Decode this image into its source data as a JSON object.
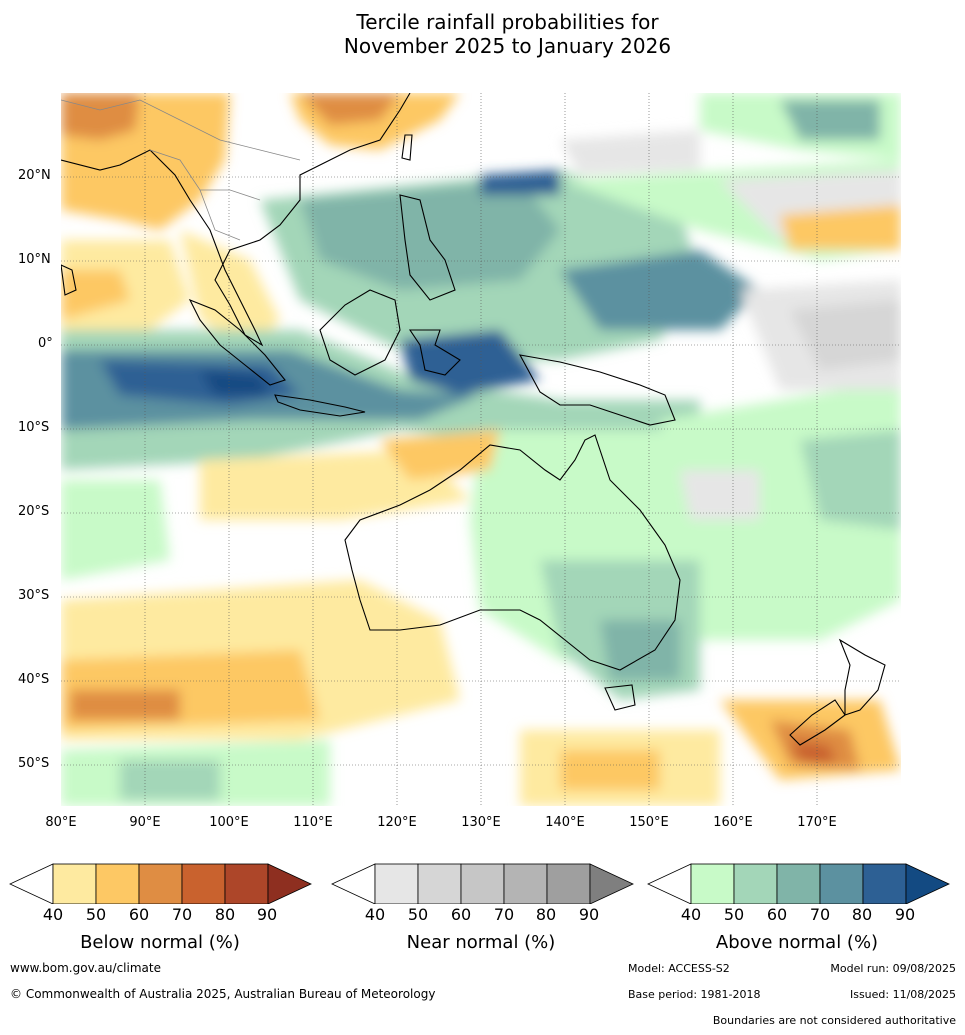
{
  "title": {
    "line1": "Tercile rainfall probabilities for",
    "line2": "November 2025 to January 2026"
  },
  "map": {
    "latitude_labels": [
      "20°N",
      "10°N",
      "0°",
      "10°S",
      "20°S",
      "30°S",
      "40°S",
      "50°S"
    ],
    "longitude_labels": [
      "80°E",
      "90°E",
      "100°E",
      "110°E",
      "120°E",
      "130°E",
      "140°E",
      "150°E",
      "160°E",
      "170°E"
    ],
    "extent": {
      "lon_min": 80,
      "lon_max": 180,
      "lat_min": -55,
      "lat_max": 30
    }
  },
  "legends": [
    {
      "title": "Below normal (%)",
      "ticks": [
        "40",
        "50",
        "60",
        "70",
        "80",
        "90"
      ],
      "colors": [
        "#ffffff",
        "#feeaa0",
        "#fdc864",
        "#df8d43",
        "#c9622e",
        "#ad4629",
        "#8e2f20"
      ]
    },
    {
      "title": "Near normal (%)",
      "ticks": [
        "40",
        "50",
        "60",
        "70",
        "80",
        "90"
      ],
      "colors": [
        "#ffffff",
        "#e6e6e6",
        "#d6d6d6",
        "#c6c6c6",
        "#b4b4b4",
        "#9f9f9f",
        "#7f7f7f"
      ]
    },
    {
      "title": "Above normal (%)",
      "ticks": [
        "40",
        "50",
        "60",
        "70",
        "80",
        "90"
      ],
      "colors": [
        "#ffffff",
        "#c8fac8",
        "#a3d6b8",
        "#80b4a8",
        "#5c91a0",
        "#2d6094",
        "#134a82"
      ]
    }
  ],
  "footer": {
    "website": "www.bom.gov.au/climate",
    "copyright": "© Commonwealth of Australia 2025, Australian Bureau of Meteorology",
    "model": "Model: ACCESS-S2",
    "model_run": "Model run: 09/08/2025",
    "base_period": "Base period: 1981-2018",
    "issued": "Issued: 11/08/2025",
    "disclaimer": "Boundaries are not considered authoritative"
  }
}
